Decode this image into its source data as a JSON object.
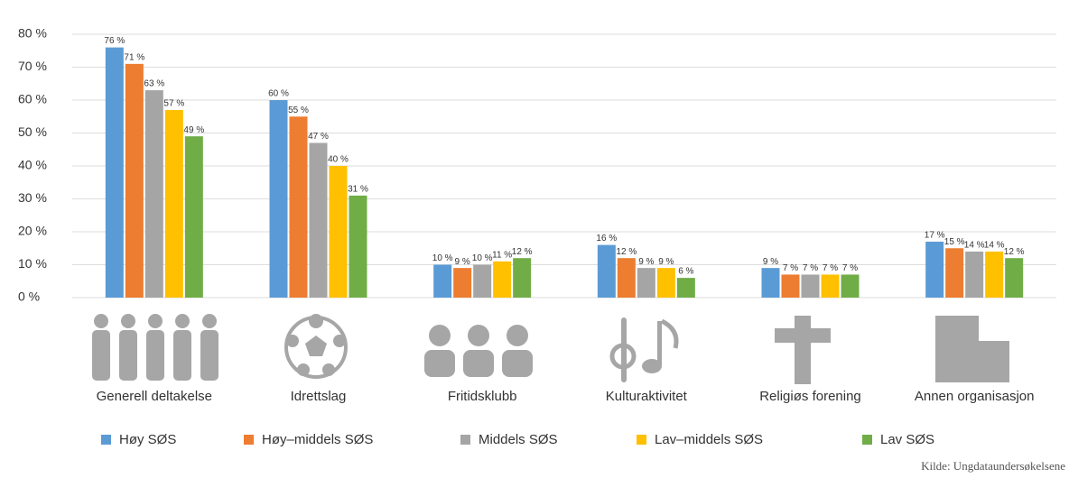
{
  "chart_data": {
    "type": "bar",
    "categories": [
      "Generell deltakelse",
      "Idrettslag",
      "Fritidsklubb",
      "Kulturaktivitet",
      "Religiøs forening",
      "Annen organisasjon"
    ],
    "series": [
      {
        "name": "Høy SØS",
        "color": "#5b9bd5",
        "values": [
          76,
          60,
          10,
          16,
          9,
          17
        ],
        "value_labels": [
          "76 %",
          "60 %",
          "10 %",
          "16 %",
          "9 %",
          "17 %"
        ]
      },
      {
        "name": "Høy–middels SØS",
        "color": "#ed7d31",
        "values": [
          71,
          55,
          9,
          12,
          7,
          15
        ],
        "value_labels": [
          "71 %",
          "55 %",
          "9 %",
          "12 %",
          "7 %",
          "15 %"
        ]
      },
      {
        "name": "Middels SØS",
        "color": "#a5a5a5",
        "values": [
          63,
          47,
          10,
          9,
          7,
          14
        ],
        "value_labels": [
          "63 %",
          "47 %",
          "10 %",
          "9 %",
          "7 %",
          "14 %"
        ]
      },
      {
        "name": "Lav–middels SØS",
        "color": "#ffc000",
        "values": [
          57,
          40,
          11,
          9,
          7,
          14
        ],
        "value_labels": [
          "57 %",
          "40 %",
          "11 %",
          "9 %",
          "7 %",
          "14 %"
        ]
      },
      {
        "name": "Lav SØS",
        "color": "#70ad47",
        "values": [
          49,
          31,
          12,
          6,
          7,
          12
        ],
        "value_labels": [
          "49 %",
          "31 %",
          "12 %",
          "6 %",
          "7 %",
          "12 %"
        ]
      }
    ],
    "ylim": [
      0,
      80
    ],
    "yticks": [
      {
        "value": 0,
        "label": "0 %"
      },
      {
        "value": 10,
        "label": "10 %"
      },
      {
        "value": 20,
        "label": "20 %"
      },
      {
        "value": 30,
        "label": "30 %"
      },
      {
        "value": 40,
        "label": "40 %"
      },
      {
        "value": 50,
        "label": "50 %"
      },
      {
        "value": 60,
        "label": "60 %"
      },
      {
        "value": 70,
        "label": "70 %"
      },
      {
        "value": 80,
        "label": "80 %"
      }
    ],
    "grid": true,
    "legend": "bottom",
    "source": "Kilde: Ungdataundersøkelsene"
  }
}
